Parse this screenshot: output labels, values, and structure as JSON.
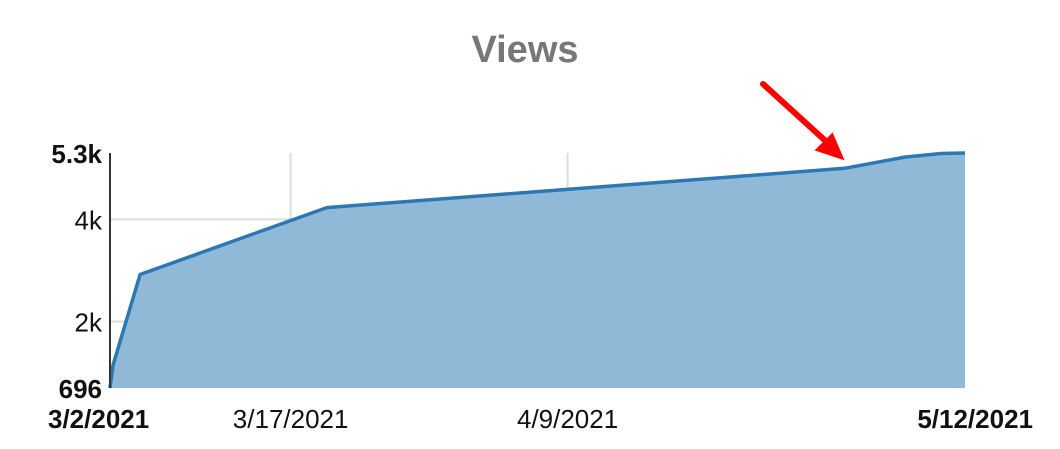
{
  "chart_data": {
    "type": "area",
    "title": "Views",
    "xlabel": "",
    "ylabel": "",
    "x": [
      "2021-03-02",
      "2021-03-02",
      "2021-03-03",
      "2021-03-20",
      "2021-05-02",
      "2021-05-07",
      "2021-05-10",
      "2021-05-12"
    ],
    "values": [
      696,
      1140,
      2920,
      4230,
      5000,
      5220,
      5290,
      5300
    ],
    "ylim": [
      696,
      5300
    ],
    "xlim": [
      "2021-03-02",
      "2021-05-12"
    ],
    "y_ticks": [
      {
        "value": 696,
        "label": "696",
        "bold": true
      },
      {
        "value": 2000,
        "label": "2k",
        "bold": false
      },
      {
        "value": 4000,
        "label": "4k",
        "bold": false
      },
      {
        "value": 5300,
        "label": "5.3k",
        "bold": true
      }
    ],
    "x_ticks": [
      {
        "value": "2021-03-02",
        "label": "3/2/2021",
        "bold": true
      },
      {
        "value": "2021-03-17",
        "label": "3/17/2021",
        "bold": false
      },
      {
        "value": "2021-04-09",
        "label": "4/9/2021",
        "bold": false
      },
      {
        "value": "2021-05-12",
        "label": "5/12/2021",
        "bold": true
      }
    ],
    "grid": true,
    "annotation": {
      "type": "arrow",
      "points_to_x": "2021-05-02",
      "points_to_y": 5000,
      "color": "#ff0000"
    },
    "colors": {
      "fill": "#8fb9d6",
      "line": "#2b78b4",
      "grid": "#dddddd",
      "axis": "#333333",
      "title": "#777777"
    }
  }
}
